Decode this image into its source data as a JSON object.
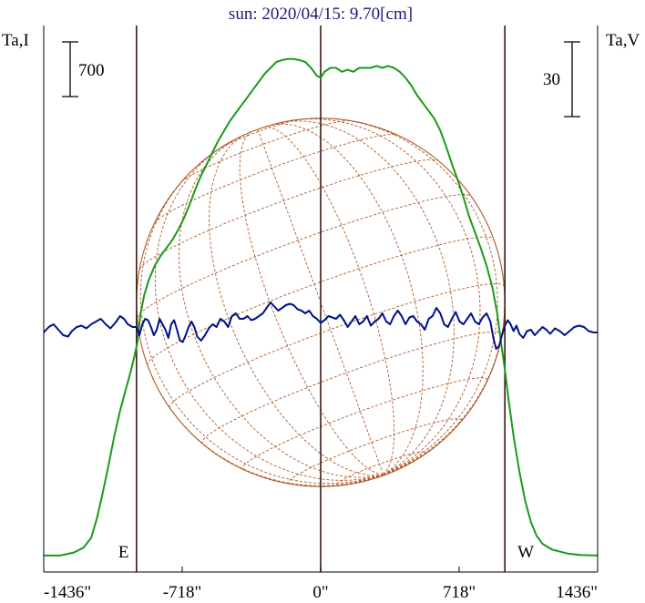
{
  "chart_data": {
    "type": "line",
    "title": "sun: 2020/04/15: 9.70[cm]",
    "left_axis_label": "Ta,I",
    "right_axis_label": "Ta,V",
    "left_scale_bar": "700",
    "right_scale_bar": "30",
    "xlim": [
      -1436,
      1436
    ],
    "x_ticks": [
      {
        "value": -1436,
        "label": "-1436\""
      },
      {
        "value": -718,
        "label": "-718\""
      },
      {
        "value": 0,
        "label": "0\""
      },
      {
        "value": 718,
        "label": "718\""
      },
      {
        "value": 1436,
        "label": "1436\""
      }
    ],
    "markers": [
      {
        "x": -955,
        "label": "E"
      },
      {
        "x": 0,
        "label": ""
      },
      {
        "x": 955,
        "label": "W"
      }
    ],
    "series": [
      {
        "color": "#1a9a1a",
        "points": [
          [
            -1436,
            0.01
          ],
          [
            -1350,
            0.01
          ],
          [
            -1280,
            0.025
          ],
          [
            -1230,
            0.05
          ],
          [
            -1190,
            0.1
          ],
          [
            -1160,
            0.2
          ],
          [
            -1130,
            0.33
          ],
          [
            -1100,
            0.47
          ],
          [
            -1070,
            0.62
          ],
          [
            -1040,
            0.75
          ],
          [
            -1010,
            0.86
          ],
          [
            -985,
            0.95
          ],
          [
            -965,
            1.03
          ],
          [
            -950,
            1.1
          ],
          [
            -935,
            1.24
          ],
          [
            -915,
            1.34
          ],
          [
            -890,
            1.42
          ],
          [
            -860,
            1.49
          ],
          [
            -830,
            1.54
          ],
          [
            -800,
            1.58
          ],
          [
            -770,
            1.62
          ],
          [
            -740,
            1.67
          ],
          [
            -710,
            1.73
          ],
          [
            -680,
            1.8
          ],
          [
            -650,
            1.88
          ],
          [
            -620,
            1.95
          ],
          [
            -590,
            2.01
          ],
          [
            -560,
            2.07
          ],
          [
            -530,
            2.13
          ],
          [
            -500,
            2.18
          ],
          [
            -470,
            2.23
          ],
          [
            -440,
            2.27
          ],
          [
            -410,
            2.31
          ],
          [
            -380,
            2.35
          ],
          [
            -350,
            2.39
          ],
          [
            -320,
            2.43
          ],
          [
            -290,
            2.47
          ],
          [
            -260,
            2.5
          ],
          [
            -230,
            2.53
          ],
          [
            -200,
            2.54
          ],
          [
            -170,
            2.545
          ],
          [
            -140,
            2.545
          ],
          [
            -110,
            2.54
          ],
          [
            -80,
            2.53
          ],
          [
            -50,
            2.5
          ],
          [
            -20,
            2.46
          ],
          [
            0,
            2.45
          ],
          [
            20,
            2.48
          ],
          [
            50,
            2.5
          ],
          [
            80,
            2.5
          ],
          [
            110,
            2.48
          ],
          [
            140,
            2.49
          ],
          [
            170,
            2.48
          ],
          [
            200,
            2.5
          ],
          [
            230,
            2.5
          ],
          [
            260,
            2.5
          ],
          [
            290,
            2.51
          ],
          [
            320,
            2.5
          ],
          [
            350,
            2.51
          ],
          [
            380,
            2.5
          ],
          [
            410,
            2.48
          ],
          [
            440,
            2.45
          ],
          [
            470,
            2.41
          ],
          [
            500,
            2.36
          ],
          [
            530,
            2.32
          ],
          [
            560,
            2.28
          ],
          [
            590,
            2.24
          ],
          [
            620,
            2.18
          ],
          [
            650,
            2.1
          ],
          [
            680,
            2.01
          ],
          [
            710,
            1.93
          ],
          [
            740,
            1.84
          ],
          [
            770,
            1.74
          ],
          [
            800,
            1.66
          ],
          [
            830,
            1.58
          ],
          [
            860,
            1.49
          ],
          [
            890,
            1.38
          ],
          [
            915,
            1.25
          ],
          [
            935,
            1.1
          ],
          [
            955,
            0.96
          ],
          [
            975,
            0.8
          ],
          [
            1000,
            0.62
          ],
          [
            1030,
            0.44
          ],
          [
            1060,
            0.29
          ],
          [
            1090,
            0.18
          ],
          [
            1120,
            0.11
          ],
          [
            1150,
            0.07
          ],
          [
            1200,
            0.04
          ],
          [
            1280,
            0.02
          ],
          [
            1350,
            0.012
          ],
          [
            1436,
            0.01
          ]
        ]
      },
      {
        "color": "#00138a",
        "points": [
          [
            -1436,
            0.0
          ],
          [
            -1410,
            0.2
          ],
          [
            -1385,
            0.3
          ],
          [
            -1360,
            0.1
          ],
          [
            -1335,
            -0.1
          ],
          [
            -1310,
            -0.15
          ],
          [
            -1290,
            0.05
          ],
          [
            -1265,
            0.2
          ],
          [
            -1240,
            0.25
          ],
          [
            -1215,
            0.15
          ],
          [
            -1190,
            0.3
          ],
          [
            -1165,
            0.4
          ],
          [
            -1140,
            0.5
          ],
          [
            -1115,
            0.3
          ],
          [
            -1090,
            0.15
          ],
          [
            -1065,
            0.35
          ],
          [
            -1040,
            0.6
          ],
          [
            -1020,
            0.5
          ],
          [
            -1000,
            0.3
          ],
          [
            -975,
            0.2
          ],
          [
            -955,
            0.2
          ],
          [
            -940,
            -0.1
          ],
          [
            -925,
            0.3
          ],
          [
            -910,
            0.5
          ],
          [
            -895,
            0.45
          ],
          [
            -880,
            0.2
          ],
          [
            -865,
            -0.1
          ],
          [
            -850,
            0.1
          ],
          [
            -835,
            0.5
          ],
          [
            -820,
            0.3
          ],
          [
            -805,
            0.1
          ],
          [
            -790,
            -0.2
          ],
          [
            -775,
            0.3
          ],
          [
            -760,
            0.45
          ],
          [
            -745,
            0.1
          ],
          [
            -730,
            -0.3
          ],
          [
            -715,
            -0.35
          ],
          [
            -700,
            -0.1
          ],
          [
            -685,
            0.2
          ],
          [
            -670,
            0.4
          ],
          [
            -655,
            0.2
          ],
          [
            -640,
            -0.15
          ],
          [
            -620,
            -0.3
          ],
          [
            -600,
            -0.1
          ],
          [
            -580,
            0.15
          ],
          [
            -560,
            0.3
          ],
          [
            -540,
            0.2
          ],
          [
            -520,
            0.5
          ],
          [
            -500,
            0.4
          ],
          [
            -480,
            0.2
          ],
          [
            -460,
            0.6
          ],
          [
            -440,
            0.7
          ],
          [
            -420,
            0.5
          ],
          [
            -400,
            0.5
          ],
          [
            -380,
            0.6
          ],
          [
            -360,
            0.45
          ],
          [
            -340,
            0.5
          ],
          [
            -320,
            0.6
          ],
          [
            -300,
            0.7
          ],
          [
            -280,
            0.9
          ],
          [
            -260,
            1.1
          ],
          [
            -240,
            0.95
          ],
          [
            -220,
            0.8
          ],
          [
            -200,
            0.9
          ],
          [
            -180,
            1.0
          ],
          [
            -160,
            1.05
          ],
          [
            -140,
            1.0
          ],
          [
            -120,
            0.85
          ],
          [
            -100,
            0.8
          ],
          [
            -80,
            0.7
          ],
          [
            -60,
            0.8
          ],
          [
            -40,
            0.6
          ],
          [
            -20,
            0.5
          ],
          [
            0,
            0.35
          ],
          [
            20,
            0.45
          ],
          [
            40,
            0.6
          ],
          [
            60,
            0.55
          ],
          [
            80,
            0.5
          ],
          [
            100,
            0.65
          ],
          [
            120,
            0.45
          ],
          [
            140,
            0.2
          ],
          [
            160,
            0.4
          ],
          [
            180,
            0.6
          ],
          [
            200,
            0.3
          ],
          [
            220,
            0.4
          ],
          [
            240,
            0.6
          ],
          [
            260,
            0.25
          ],
          [
            280,
            0.4
          ],
          [
            300,
            0.5
          ],
          [
            320,
            0.7
          ],
          [
            340,
            0.4
          ],
          [
            360,
            0.3
          ],
          [
            380,
            0.6
          ],
          [
            400,
            0.8
          ],
          [
            420,
            0.6
          ],
          [
            440,
            0.3
          ],
          [
            460,
            0.55
          ],
          [
            480,
            0.6
          ],
          [
            500,
            0.4
          ],
          [
            520,
            0.3
          ],
          [
            540,
            0.1
          ],
          [
            560,
            0.5
          ],
          [
            580,
            0.6
          ],
          [
            600,
            0.9
          ],
          [
            620,
            0.7
          ],
          [
            640,
            0.3
          ],
          [
            660,
            0.2
          ],
          [
            680,
            0.5
          ],
          [
            700,
            0.75
          ],
          [
            720,
            0.4
          ],
          [
            740,
            0.3
          ],
          [
            760,
            0.5
          ],
          [
            780,
            0.7
          ],
          [
            800,
            0.4
          ],
          [
            820,
            0.3
          ],
          [
            840,
            0.55
          ],
          [
            860,
            0.7
          ],
          [
            880,
            0.4
          ],
          [
            895,
            -0.2
          ],
          [
            910,
            -0.6
          ],
          [
            925,
            -0.5
          ],
          [
            940,
            -0.1
          ],
          [
            955,
            0.25
          ],
          [
            970,
            0.45
          ],
          [
            985,
            0.3
          ],
          [
            1000,
            0.05
          ],
          [
            1015,
            0.25
          ],
          [
            1030,
            -0.05
          ],
          [
            1050,
            -0.2
          ],
          [
            1070,
            0.05
          ],
          [
            1090,
            0.1
          ],
          [
            1110,
            -0.1
          ],
          [
            1130,
            0.05
          ],
          [
            1150,
            0.2
          ],
          [
            1170,
            0.1
          ],
          [
            1190,
            -0.05
          ],
          [
            1215,
            0.15
          ],
          [
            1240,
            0.05
          ],
          [
            1265,
            -0.1
          ],
          [
            1290,
            0.05
          ],
          [
            1315,
            0.2
          ],
          [
            1340,
            0.25
          ],
          [
            1365,
            0.2
          ],
          [
            1390,
            0.05
          ],
          [
            1415,
            0.0
          ],
          [
            1436,
            0.0
          ]
        ]
      }
    ],
    "solar_disk": {
      "center_x": 0,
      "radius_arcsec": 955,
      "color": "#b05a2a"
    }
  }
}
